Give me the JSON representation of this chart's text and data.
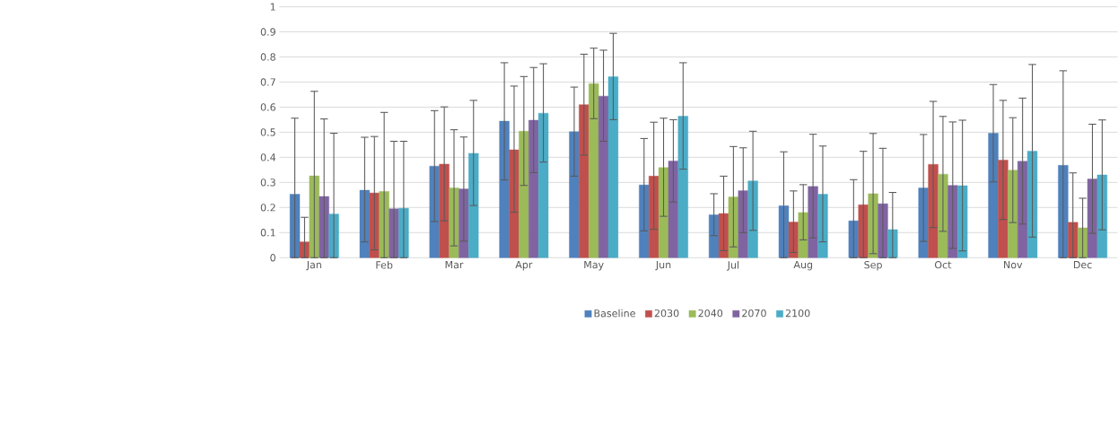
{
  "chart_data": {
    "type": "bar",
    "categories": [
      "Jan",
      "Feb",
      "Mar",
      "Apr",
      "May",
      "Jun",
      "Jul",
      "Aug",
      "Sep",
      "Oct",
      "Nov",
      "Dec"
    ],
    "series": [
      {
        "name": "Baseline",
        "color": "#4f81bd",
        "values": [
          0.253,
          0.269,
          0.365,
          0.544,
          0.502,
          0.29,
          0.171,
          0.207,
          0.147,
          0.278,
          0.496,
          0.368
        ],
        "errors": [
          [
            0,
            0.556
          ],
          [
            0.063,
            0.48
          ],
          [
            0.144,
            0.586
          ],
          [
            0.31,
            0.777
          ],
          [
            0.325,
            0.68
          ],
          [
            0.107,
            0.475
          ],
          [
            0.088,
            0.255
          ],
          [
            0,
            0.422
          ],
          [
            0,
            0.311
          ],
          [
            0.065,
            0.491
          ],
          [
            0.302,
            0.69
          ],
          [
            0,
            0.745
          ]
        ]
      },
      {
        "name": "2030",
        "color": "#c0504d",
        "values": [
          0.063,
          0.258,
          0.373,
          0.43,
          0.61,
          0.325,
          0.176,
          0.142,
          0.211,
          0.372,
          0.389,
          0.141
        ],
        "errors": [
          [
            0,
            0.161
          ],
          [
            0.031,
            0.483
          ],
          [
            0.147,
            0.601
          ],
          [
            0.181,
            0.684
          ],
          [
            0.409,
            0.811
          ],
          [
            0.113,
            0.54
          ],
          [
            0.028,
            0.325
          ],
          [
            0.021,
            0.266
          ],
          [
            0,
            0.424
          ],
          [
            0.12,
            0.623
          ],
          [
            0.152,
            0.627
          ],
          [
            0,
            0.338
          ]
        ]
      },
      {
        "name": "2040",
        "color": "#9bbb59",
        "values": [
          0.326,
          0.264,
          0.278,
          0.504,
          0.694,
          0.359,
          0.242,
          0.18,
          0.255,
          0.333,
          0.349,
          0.119
        ],
        "errors": [
          [
            0,
            0.663
          ],
          [
            0,
            0.579
          ],
          [
            0.047,
            0.51
          ],
          [
            0.288,
            0.722
          ],
          [
            0.554,
            0.835
          ],
          [
            0.165,
            0.556
          ],
          [
            0.043,
            0.443
          ],
          [
            0.071,
            0.291
          ],
          [
            0.016,
            0.495
          ],
          [
            0.105,
            0.563
          ],
          [
            0.14,
            0.558
          ],
          [
            0,
            0.237
          ]
        ]
      },
      {
        "name": "2070",
        "color": "#8064a2",
        "values": [
          0.244,
          0.195,
          0.274,
          0.548,
          0.644,
          0.385,
          0.267,
          0.284,
          0.215,
          0.288,
          0.384,
          0.314
        ],
        "errors": [
          [
            0,
            0.553
          ],
          [
            0,
            0.464
          ],
          [
            0.066,
            0.481
          ],
          [
            0.339,
            0.758
          ],
          [
            0.464,
            0.827
          ],
          [
            0.222,
            0.55
          ],
          [
            0.1,
            0.438
          ],
          [
            0.079,
            0.492
          ],
          [
            0,
            0.436
          ],
          [
            0.037,
            0.541
          ],
          [
            0.134,
            0.636
          ],
          [
            0.097,
            0.532
          ]
        ]
      },
      {
        "name": "2100",
        "color": "#4bacc6",
        "values": [
          0.174,
          0.197,
          0.416,
          0.576,
          0.721,
          0.564,
          0.306,
          0.253,
          0.112,
          0.287,
          0.425,
          0.33
        ],
        "errors": [
          [
            0,
            0.496
          ],
          [
            0,
            0.464
          ],
          [
            0.208,
            0.627
          ],
          [
            0.381,
            0.773
          ],
          [
            0.55,
            0.894
          ],
          [
            0.353,
            0.777
          ],
          [
            0.109,
            0.504
          ],
          [
            0.063,
            0.445
          ],
          [
            0,
            0.26
          ],
          [
            0.027,
            0.548
          ],
          [
            0.082,
            0.77
          ],
          [
            0.111,
            0.549
          ]
        ]
      }
    ],
    "ylim": [
      0,
      1
    ],
    "yticks": [
      0,
      0.1,
      0.2,
      0.3,
      0.4,
      0.5,
      0.6,
      0.7,
      0.8,
      0.9,
      1
    ],
    "grid": "y",
    "legend": "bottom"
  }
}
